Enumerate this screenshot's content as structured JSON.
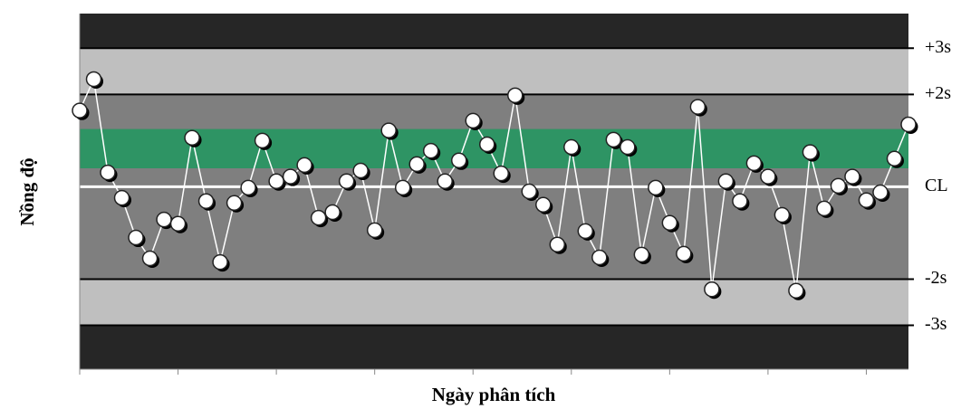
{
  "chart_data": {
    "type": "line",
    "x_label": "Ngày phân tích",
    "y_label": "Nồng độ",
    "x": [
      1,
      2,
      3,
      4,
      5,
      6,
      7,
      8,
      9,
      10,
      11,
      12,
      13,
      14,
      15,
      16,
      17,
      18,
      19,
      20,
      21,
      22,
      23,
      24,
      25,
      26,
      27,
      28,
      29,
      30,
      31,
      32,
      33,
      34,
      35,
      36,
      37,
      38,
      39,
      40,
      41,
      42,
      43,
      44,
      45,
      46,
      47,
      48,
      49,
      50,
      51,
      52,
      53,
      54,
      55,
      56,
      57,
      58,
      59,
      60
    ],
    "values": [
      1.65,
      2.33,
      0.31,
      -0.24,
      -1.1,
      -1.55,
      -0.71,
      -0.8,
      1.06,
      -0.31,
      -1.63,
      -0.35,
      -0.02,
      1.0,
      0.12,
      0.22,
      0.47,
      -0.67,
      -0.55,
      0.12,
      0.35,
      -0.94,
      1.22,
      -0.02,
      0.49,
      0.78,
      0.12,
      0.57,
      1.43,
      0.92,
      0.29,
      1.98,
      -0.1,
      -0.39,
      -1.25,
      0.86,
      -0.96,
      -1.53,
      1.02,
      0.86,
      -1.47,
      -0.02,
      -0.78,
      -1.45,
      1.73,
      -2.22,
      0.12,
      -0.31,
      0.51,
      0.22,
      -0.61,
      -2.25,
      0.75,
      -0.47,
      0.02,
      0.22,
      -0.29,
      -0.12,
      0.61,
      1.35
    ],
    "line_color": "#ffffff",
    "marker_color": "#ffffff",
    "xlim": [
      1,
      60
    ],
    "xticks": [
      1,
      8,
      15,
      22,
      29,
      36,
      43,
      50,
      57
    ],
    "ylim": [
      -3.95,
      3.75
    ],
    "yticks": [
      {
        "value": 3,
        "label": "+3s"
      },
      {
        "value": 2,
        "label": "+2s"
      },
      {
        "value": 0,
        "label": "CL"
      },
      {
        "value": -2,
        "label": "-2s"
      },
      {
        "value": -3,
        "label": "-3s"
      }
    ],
    "center_line_color": "#ffffff",
    "limit_line_color": "#000000",
    "bands": [
      {
        "from": 3,
        "to": 3.75,
        "color": "#262626"
      },
      {
        "from": 2,
        "to": 3,
        "color": "#bfbfbf"
      },
      {
        "from": -2,
        "to": 2,
        "color": "#7f7f7f"
      },
      {
        "from": 0.4,
        "to": 1.25,
        "color": "#2e9464"
      },
      {
        "from": -3,
        "to": -2,
        "color": "#bfbfbf"
      },
      {
        "from": -3.95,
        "to": -3,
        "color": "#262626"
      }
    ]
  }
}
